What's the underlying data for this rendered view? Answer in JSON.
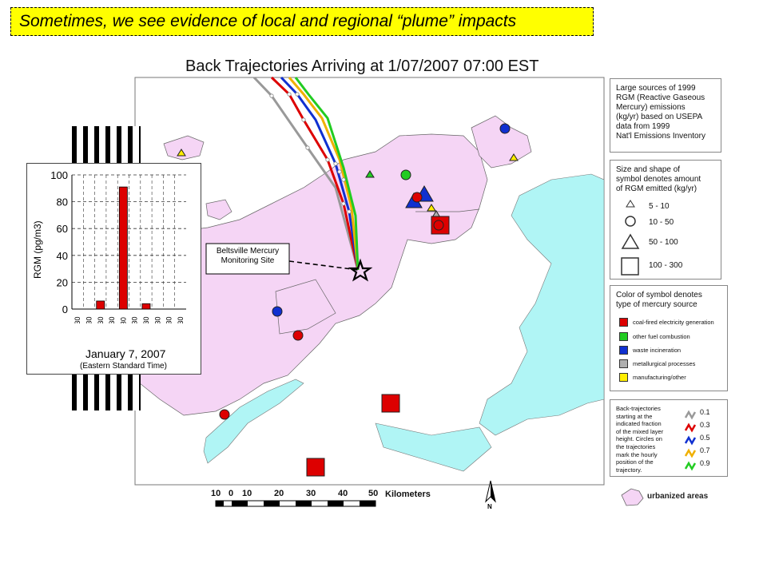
{
  "banner": "Sometimes, we see evidence of local and regional “plume” impacts",
  "title": "Back Trajectories Arriving at 1/07/2007  07:00 EST",
  "site_label": [
    "Beltsville Mercury",
    "Monitoring Site"
  ],
  "legend_sources": {
    "text": [
      "Large sources of 1999",
      "RGM (Reactive Gaseous",
      "Mercury) emissions",
      "(kg/yr) based on USEPA",
      "data from 1999",
      "Nat'l Emissions Inventory"
    ]
  },
  "legend_size": {
    "text": [
      "Size and shape of",
      "symbol denotes amount",
      "of RGM emitted (kg/yr)"
    ],
    "items": [
      "5 - 10",
      "10 - 50",
      "50 - 100",
      "100 - 300"
    ]
  },
  "legend_color": {
    "text": [
      "Color of symbol denotes",
      "type of mercury source"
    ],
    "items": [
      {
        "label": "coal-fired electricity generation",
        "color": "#dd0000"
      },
      {
        "label": "other fuel combustion",
        "color": "#22cc22"
      },
      {
        "label": "waste incineration",
        "color": "#1030d0"
      },
      {
        "label": "metallurgical processes",
        "color": "#b0b0b0"
      },
      {
        "label": "manufacturing/other",
        "color": "#ffee00"
      }
    ]
  },
  "legend_traj": {
    "text": [
      "Back-trajectories",
      "starting at the",
      "indicated fraction",
      "of the mixed layer",
      "height. Circles on",
      "the trajectories",
      "mark the hourly",
      "position of the",
      "trajectory."
    ],
    "items": [
      {
        "label": "0.1",
        "color": "#999999"
      },
      {
        "label": "0.3",
        "color": "#dd0000"
      },
      {
        "label": "0.5",
        "color": "#1030d0"
      },
      {
        "label": "0.7",
        "color": "#f0b000"
      },
      {
        "label": "0.9",
        "color": "#22cc22"
      }
    ]
  },
  "legend_urban": "urbanized areas",
  "scale": {
    "labels": [
      "10",
      "0",
      "10",
      "20",
      "30",
      "40",
      "50"
    ],
    "unit": "Kilometers"
  },
  "north": "N",
  "chart_data": {
    "type": "bar",
    "categories": [
      "07:30",
      "08:30",
      "09:30",
      "10:30",
      "11:30",
      "12:30",
      "13:30",
      "14:30",
      "15:30",
      "16:30"
    ],
    "values": [
      0,
      0,
      6,
      0,
      91,
      0,
      4,
      0,
      0,
      0
    ],
    "ylabel": "RGM (pg/m3)",
    "ylim": [
      0,
      100
    ],
    "yticks": [
      0,
      20,
      40,
      60,
      80,
      100
    ],
    "xlabel": "January 7, 2007",
    "subtitle": "(Eastern Standard Time)",
    "bar_color": "#dd0000",
    "grid": "dashed"
  },
  "colors": {
    "urban": "#f5d5f5",
    "water": "#b0f5f5"
  }
}
